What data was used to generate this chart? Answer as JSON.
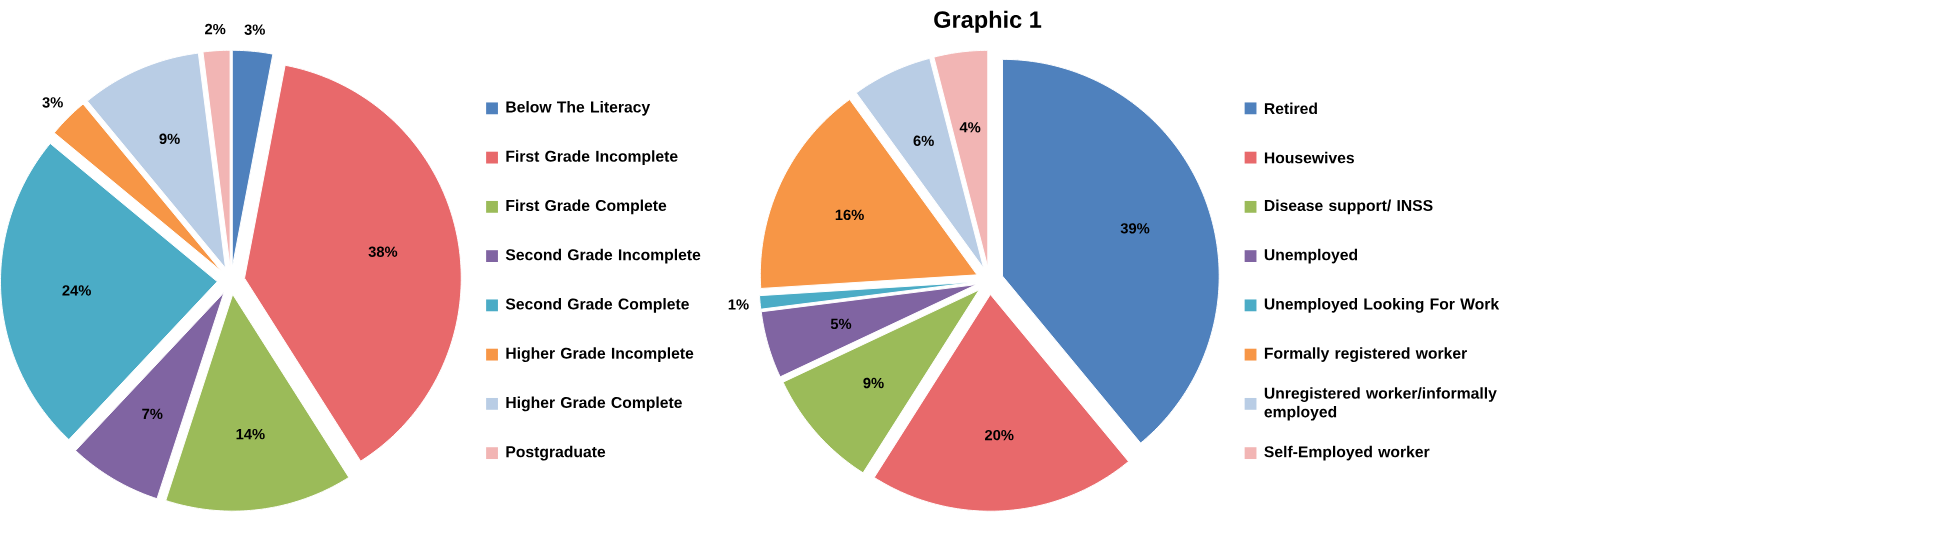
{
  "chart_data": [
    {
      "type": "pie",
      "legend": "right",
      "categories": [
        "Below The Literacy",
        "First Grade Incomplete",
        "First Grade Complete",
        "Second Grade Incomplete",
        "Second Grade Complete",
        "Higher Grade Incomplete",
        "Higher Grade Complete",
        "Postgraduate"
      ],
      "values": [
        3,
        38,
        14,
        7,
        24,
        3,
        9,
        2
      ],
      "value_labels": [
        "3%",
        "38%",
        "14%",
        "7%",
        "24%",
        "3%",
        "9%",
        "2%"
      ],
      "colors": [
        "#4f81bd",
        "#e8696b",
        "#9bbb59",
        "#8064a2",
        "#4bacc6",
        "#f79646",
        "#b9cde5",
        "#f2b5b4"
      ]
    },
    {
      "type": "pie",
      "title": "Graphic 1",
      "legend": "right",
      "categories": [
        "Retired",
        "Housewives",
        "Disease support/ INSS",
        "Unemployed",
        "Unemployed Looking For Work",
        "Formally registered worker",
        "Unregistered worker/informally employed",
        "Self-Employed worker"
      ],
      "values": [
        39,
        20,
        9,
        5,
        1,
        16,
        6,
        4
      ],
      "value_labels": [
        "39%",
        "20%",
        "9%",
        "5%",
        "1%",
        "16%",
        "6%",
        "4%"
      ],
      "colors": [
        "#4f81bd",
        "#e8696b",
        "#9bbb59",
        "#8064a2",
        "#4bacc6",
        "#f79646",
        "#b9cde5",
        "#f2b5b4"
      ]
    }
  ]
}
